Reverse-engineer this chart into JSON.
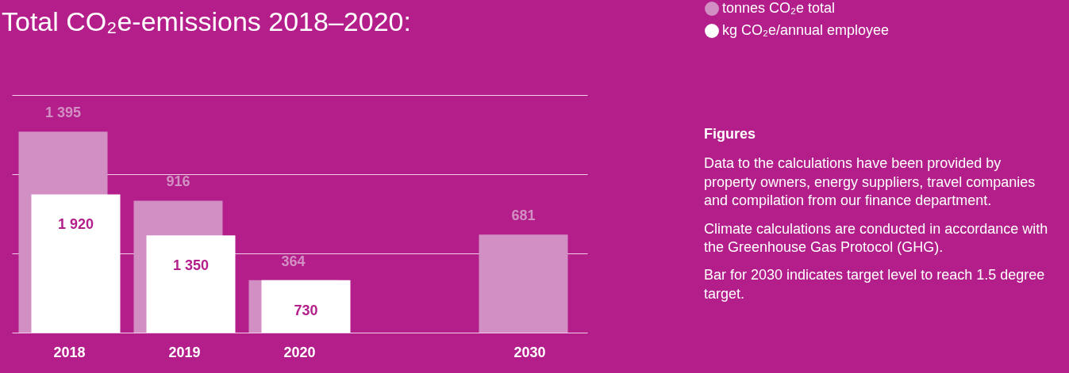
{
  "chart_data": {
    "type": "bar",
    "title": "Total CO₂e-emissions 2018–2020:",
    "categories": [
      "2018",
      "2019",
      "2020",
      null,
      "2030"
    ],
    "series": [
      {
        "name": "tonnes CO₂e total",
        "color": "#d28fc3",
        "values": [
          1395,
          916,
          364,
          null,
          681
        ],
        "value_labels": [
          "1 395",
          "916",
          "364",
          null,
          "681"
        ]
      },
      {
        "name": "kg CO₂e/annual employee",
        "color": "#ffffff",
        "axis": "y2",
        "values": [
          1920,
          1350,
          730,
          null,
          null
        ],
        "value_labels": [
          "1 920",
          "1 350",
          "730",
          null,
          null
        ]
      }
    ],
    "ylim": [
      0,
      1650
    ],
    "yticks": [
      {
        "value": 0,
        "label": null
      },
      {
        "value": 550,
        "label": null
      },
      {
        "value": 1100,
        "label": null
      },
      {
        "value": 1650,
        "label": null
      }
    ],
    "y2lim": [
      0,
      3300
    ],
    "grid": "y",
    "legend": "top right",
    "tick_labels": "x",
    "annotations": [
      "Figures",
      "Data to the calculations have been provided by property owners, energy suppliers, travel companies and compilation from our finance department.",
      "Climate calculations are conducted in accordance with the Greenhouse Gas Protocol (GHG).",
      "Bar for 2030 indicates target level to reach 1.5 degree target."
    ]
  }
}
